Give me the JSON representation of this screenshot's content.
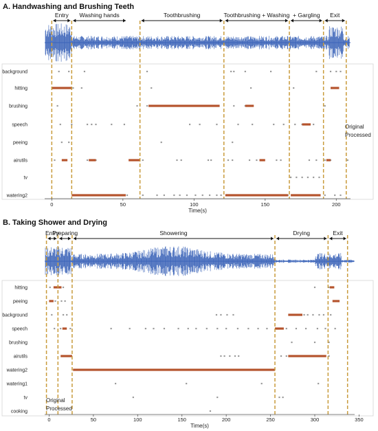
{
  "figure": {
    "colors": {
      "waveform": "#3a63b8",
      "original": "#9a9a9a",
      "processed": "#b5532c",
      "boundary": "#c89a3a",
      "arrow": "#111111"
    }
  },
  "chart_data": [
    {
      "type": "scatter",
      "title": "A. Handwashing and Brushing Teeth",
      "xlabel": "Time(s)",
      "xlim": [
        -5,
        210
      ],
      "xticks": [
        0,
        50,
        100,
        150,
        200
      ],
      "grid": false,
      "legend": {
        "placement": "right",
        "entries": [
          "Original",
          "Processed"
        ]
      },
      "boundaries": [
        0,
        14,
        62,
        121,
        167,
        191,
        207
      ],
      "segments": [
        {
          "label": "Entry",
          "start": 0,
          "end": 14
        },
        {
          "label": "Washing hands",
          "start": 14,
          "end": 53
        },
        {
          "label": "Toothbrushing",
          "start": 62,
          "end": 121
        },
        {
          "label": "Toothbrushing + Washing",
          "start": 121,
          "end": 167
        },
        {
          "label": "+ Gargling",
          "start": 167,
          "end": 191
        },
        {
          "label": "Exit",
          "start": 191,
          "end": 207
        }
      ],
      "categories": [
        "background",
        "hitting",
        "brushing",
        "speech",
        "peeing",
        "airutils",
        "tv",
        "watering2"
      ],
      "processed": [
        {
          "category": "hitting",
          "start": 0,
          "end": 14
        },
        {
          "category": "hitting",
          "start": 196,
          "end": 202
        },
        {
          "category": "brushing",
          "start": 68,
          "end": 118
        },
        {
          "category": "brushing",
          "start": 136,
          "end": 142
        },
        {
          "category": "speech",
          "start": 176,
          "end": 182
        },
        {
          "category": "airutils",
          "start": 7,
          "end": 11
        },
        {
          "category": "airutils",
          "start": 26,
          "end": 31
        },
        {
          "category": "airutils",
          "start": 54,
          "end": 62
        },
        {
          "category": "airutils",
          "start": 146,
          "end": 150
        },
        {
          "category": "airutils",
          "start": 193,
          "end": 196
        },
        {
          "category": "watering2",
          "start": 14,
          "end": 52
        },
        {
          "category": "watering2",
          "start": 122,
          "end": 166
        },
        {
          "category": "watering2",
          "start": 168,
          "end": 189
        }
      ],
      "original": [
        {
          "category": "background",
          "x": [
            5,
            12,
            23,
            67,
            126,
            128,
            136,
            154,
            186,
            196,
            200,
            203
          ]
        },
        {
          "category": "hitting",
          "x": [
            3,
            6,
            9,
            12,
            15,
            21,
            70,
            140,
            170,
            197,
            200
          ]
        },
        {
          "category": "brushing",
          "x": [
            4,
            60,
            67,
            75,
            110,
            128,
            136,
            141,
            192
          ]
        },
        {
          "category": "speech",
          "x": [
            6,
            14,
            25,
            28,
            31,
            42,
            51,
            97,
            104,
            116,
            131,
            141,
            156,
            163,
            171,
            176,
            184
          ]
        },
        {
          "category": "peeing",
          "x": [
            7,
            12,
            77,
            127
          ]
        },
        {
          "category": "airutils",
          "x": [
            2,
            9,
            25,
            29,
            31,
            56,
            61,
            64,
            88,
            91,
            110,
            112,
            124,
            127,
            139,
            144,
            147,
            158,
            161,
            181,
            186,
            192,
            196,
            208
          ]
        },
        {
          "category": "tv",
          "x": [
            168,
            172,
            176,
            180,
            184,
            188
          ]
        },
        {
          "category": "watering2",
          "x": [
            15,
            18,
            22,
            30,
            35,
            40,
            44,
            47,
            50,
            53,
            64,
            74,
            79,
            86,
            90,
            95,
            101,
            106,
            111,
            116,
            119,
            124,
            130,
            136,
            141,
            146,
            151,
            156,
            161,
            166,
            171,
            176,
            181,
            186,
            192,
            199,
            203
          ]
        }
      ]
    },
    {
      "type": "scatter",
      "title": "B. Taking Shower and Drying",
      "xlabel": "Time(s)",
      "xlim": [
        -5,
        345
      ],
      "xticks": [
        0,
        50,
        100,
        150,
        200,
        250,
        300,
        350
      ],
      "grid": false,
      "legend": {
        "placement": "bottom-left",
        "entries": [
          "Original",
          "Processed"
        ]
      },
      "boundaries": [
        -3,
        10,
        26,
        255,
        315,
        337
      ],
      "segments": [
        {
          "label": "Entry",
          "start": -3,
          "end": 10
        },
        {
          "label": "Preparing",
          "start": 10,
          "end": 26
        },
        {
          "label": "Showering",
          "start": 26,
          "end": 255
        },
        {
          "label": "Drying",
          "start": 255,
          "end": 315
        },
        {
          "label": "Exit",
          "start": 315,
          "end": 337
        }
      ],
      "categories": [
        "hitting",
        "peeing",
        "background",
        "speech",
        "brushing",
        "airutils",
        "watering2",
        "watering1",
        "tv",
        "cooking"
      ],
      "processed": [
        {
          "category": "hitting",
          "start": 5,
          "end": 14
        },
        {
          "category": "hitting",
          "start": 317,
          "end": 322
        },
        {
          "category": "peeing",
          "start": 0,
          "end": 5
        },
        {
          "category": "peeing",
          "start": 320,
          "end": 328
        },
        {
          "category": "background",
          "start": 270,
          "end": 286
        },
        {
          "category": "speech",
          "start": 15,
          "end": 20
        },
        {
          "category": "speech",
          "start": 255,
          "end": 265
        },
        {
          "category": "airutils",
          "start": 13,
          "end": 26
        },
        {
          "category": "airutils",
          "start": 270,
          "end": 313
        },
        {
          "category": "watering2",
          "start": 27,
          "end": 255
        }
      ],
      "original": [
        {
          "category": "hitting",
          "x": [
            1,
            6,
            9,
            16,
            300,
            316,
            321
          ]
        },
        {
          "category": "peeing",
          "x": [
            2,
            7,
            14,
            18,
            322,
            327
          ]
        },
        {
          "category": "background",
          "x": [
            3,
            16,
            20,
            189,
            194,
            201,
            208,
            288,
            292,
            298,
            305,
            310,
            318
          ]
        },
        {
          "category": "speech",
          "x": [
            6,
            13,
            24,
            70,
            91,
            109,
            118,
            130,
            146,
            157,
            166,
            178,
            190,
            200,
            213,
            225,
            236,
            246,
            268,
            279,
            290,
            303,
            312,
            323
          ]
        },
        {
          "category": "brushing",
          "x": [
            274,
            300,
            316
          ]
        },
        {
          "category": "airutils",
          "x": [
            194,
            198,
            204,
            210,
            214,
            262,
            268,
            316
          ]
        },
        {
          "category": "watering2",
          "x": [
            28,
            40,
            55,
            70,
            82,
            98,
            112,
            128,
            140,
            156,
            170,
            186,
            200,
            212,
            228,
            240,
            254
          ]
        },
        {
          "category": "watering1",
          "x": [
            75,
            155,
            240,
            304
          ]
        },
        {
          "category": "tv",
          "x": [
            95,
            190,
            260,
            264
          ]
        },
        {
          "category": "cooking",
          "x": [
            182
          ]
        }
      ]
    }
  ]
}
